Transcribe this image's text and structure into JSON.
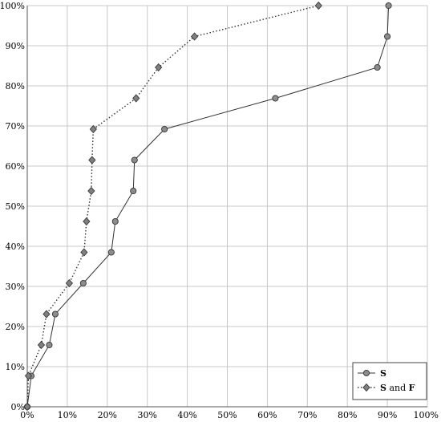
{
  "chart_data": {
    "type": "line",
    "title": "",
    "xlabel": "",
    "ylabel": "",
    "xlim": [
      0,
      100
    ],
    "ylim": [
      0,
      100
    ],
    "x_ticks": [
      "0%",
      "10%",
      "20%",
      "30%",
      "40%",
      "50%",
      "60%",
      "70%",
      "80%",
      "90%",
      "100%"
    ],
    "y_ticks": [
      "0%",
      "10%",
      "20%",
      "30%",
      "40%",
      "50%",
      "60%",
      "70%",
      "80%",
      "90%",
      "100%"
    ],
    "grid": true,
    "legend_position": "bottom-right",
    "series": [
      {
        "name": "S",
        "style": "solid",
        "marker": "circle",
        "points": [
          [
            0,
            0
          ],
          [
            1,
            7.7
          ],
          [
            5.5,
            15.4
          ],
          [
            7,
            23.1
          ],
          [
            14,
            30.8
          ],
          [
            21,
            38.5
          ],
          [
            22,
            46.2
          ],
          [
            26.5,
            53.8
          ],
          [
            26.8,
            61.5
          ],
          [
            34.3,
            69.2
          ],
          [
            62,
            76.9
          ],
          [
            87.5,
            84.6
          ],
          [
            90,
            92.3
          ],
          [
            90.3,
            100
          ]
        ]
      },
      {
        "name": "S and F",
        "name_parts": [
          "S",
          " and ",
          "F"
        ],
        "style": "dotted",
        "marker": "diamond",
        "points": [
          [
            0,
            0
          ],
          [
            0.3,
            7.7
          ],
          [
            3.5,
            15.4
          ],
          [
            4.8,
            23.1
          ],
          [
            10.5,
            30.8
          ],
          [
            14.2,
            38.5
          ],
          [
            14.8,
            46.2
          ],
          [
            16,
            53.8
          ],
          [
            16.2,
            61.5
          ],
          [
            16.5,
            69.2
          ],
          [
            27.2,
            76.9
          ],
          [
            32.8,
            84.6
          ],
          [
            41.8,
            92.3
          ],
          [
            72.8,
            100
          ]
        ]
      }
    ]
  }
}
